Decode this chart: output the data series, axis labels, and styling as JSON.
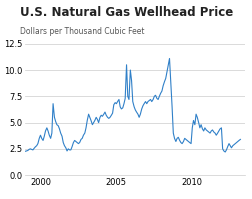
{
  "title": "U.S. Natural Gas Wellhead Price",
  "subtitle": "Dollars per Thousand Cubic Feet",
  "line_color": "#3080c8",
  "background_color": "#ffffff",
  "grid_color": "#cccccc",
  "xlim": [
    1999,
    2013.5
  ],
  "ylim": [
    0.0,
    12.5
  ],
  "yticks": [
    0.0,
    2.5,
    5.0,
    7.5,
    10.0,
    12.5
  ],
  "xticks": [
    2000,
    2005,
    2010
  ],
  "years": [
    1999.0,
    1999.08,
    1999.17,
    1999.25,
    1999.33,
    1999.42,
    1999.5,
    1999.58,
    1999.67,
    1999.75,
    1999.83,
    1999.92,
    2000.0,
    2000.08,
    2000.17,
    2000.25,
    2000.33,
    2000.42,
    2000.5,
    2000.58,
    2000.67,
    2000.75,
    2000.83,
    2000.92,
    2001.0,
    2001.08,
    2001.17,
    2001.25,
    2001.33,
    2001.42,
    2001.5,
    2001.58,
    2001.67,
    2001.75,
    2001.83,
    2001.92,
    2002.0,
    2002.08,
    2002.17,
    2002.25,
    2002.33,
    2002.42,
    2002.5,
    2002.58,
    2002.67,
    2002.75,
    2002.83,
    2002.92,
    2003.0,
    2003.08,
    2003.17,
    2003.25,
    2003.33,
    2003.42,
    2003.5,
    2003.58,
    2003.67,
    2003.75,
    2003.83,
    2003.92,
    2004.0,
    2004.08,
    2004.17,
    2004.25,
    2004.33,
    2004.42,
    2004.5,
    2004.58,
    2004.67,
    2004.75,
    2004.83,
    2004.92,
    2005.0,
    2005.08,
    2005.17,
    2005.25,
    2005.33,
    2005.42,
    2005.5,
    2005.58,
    2005.67,
    2005.75,
    2005.83,
    2005.92,
    2006.0,
    2006.08,
    2006.17,
    2006.25,
    2006.33,
    2006.42,
    2006.5,
    2006.58,
    2006.67,
    2006.75,
    2006.83,
    2006.92,
    2007.0,
    2007.08,
    2007.17,
    2007.25,
    2007.33,
    2007.42,
    2007.5,
    2007.58,
    2007.67,
    2007.75,
    2007.83,
    2007.92,
    2008.0,
    2008.08,
    2008.17,
    2008.25,
    2008.33,
    2008.42,
    2008.5,
    2008.67,
    2008.75,
    2008.83,
    2008.92,
    2009.0,
    2009.08,
    2009.17,
    2009.25,
    2009.33,
    2009.42,
    2009.5,
    2009.58,
    2009.67,
    2009.75,
    2009.83,
    2009.92,
    2010.0,
    2010.08,
    2010.17,
    2010.25,
    2010.33,
    2010.42,
    2010.5,
    2010.58,
    2010.67,
    2010.75,
    2010.83,
    2010.92,
    2011.0,
    2011.08,
    2011.17,
    2011.25,
    2011.33,
    2011.42,
    2011.5,
    2011.58,
    2011.67,
    2011.75,
    2011.83,
    2011.92,
    2012.0,
    2012.08,
    2012.17,
    2012.25,
    2012.33,
    2012.42,
    2012.5,
    2012.58,
    2012.67,
    2012.75,
    2012.83,
    2012.92,
    2013.0,
    2013.08,
    2013.17
  ],
  "prices": [
    2.27,
    2.3,
    2.35,
    2.45,
    2.5,
    2.45,
    2.4,
    2.55,
    2.7,
    2.8,
    3.0,
    3.5,
    3.8,
    3.5,
    3.3,
    3.7,
    4.2,
    4.5,
    4.2,
    3.8,
    3.5,
    4.0,
    6.8,
    5.5,
    5.1,
    4.8,
    4.7,
    4.4,
    4.0,
    3.7,
    3.1,
    2.8,
    2.6,
    2.3,
    2.5,
    2.4,
    2.4,
    2.7,
    3.1,
    3.3,
    3.2,
    3.1,
    3.0,
    3.1,
    3.4,
    3.5,
    3.8,
    4.0,
    4.5,
    5.2,
    5.8,
    5.5,
    5.2,
    4.8,
    5.0,
    5.2,
    5.5,
    5.3,
    5.0,
    5.5,
    5.7,
    5.6,
    5.8,
    6.0,
    5.7,
    5.5,
    5.4,
    5.5,
    5.7,
    5.9,
    6.7,
    6.9,
    6.8,
    7.0,
    7.2,
    6.5,
    6.3,
    6.4,
    6.8,
    7.3,
    10.5,
    7.5,
    7.2,
    10.0,
    9.0,
    7.0,
    6.5,
    6.2,
    6.0,
    5.8,
    5.5,
    5.8,
    6.3,
    6.6,
    6.8,
    7.0,
    6.8,
    7.0,
    7.1,
    7.2,
    7.0,
    7.2,
    7.5,
    7.6,
    7.3,
    7.2,
    7.5,
    7.8,
    8.0,
    8.5,
    8.9,
    9.2,
    9.8,
    10.5,
    11.1,
    6.5,
    4.0,
    3.5,
    3.2,
    3.5,
    3.6,
    3.3,
    3.1,
    3.0,
    3.2,
    3.5,
    3.4,
    3.3,
    3.2,
    3.1,
    3.0,
    4.5,
    5.2,
    4.8,
    5.8,
    5.5,
    5.0,
    4.5,
    4.8,
    4.4,
    4.2,
    4.5,
    4.3,
    4.2,
    4.1,
    4.0,
    4.2,
    4.3,
    4.1,
    4.0,
    3.8,
    4.0,
    4.2,
    4.4,
    4.5,
    2.5,
    2.3,
    2.2,
    2.4,
    2.7,
    3.0,
    2.8,
    2.6,
    2.8,
    2.9,
    3.0,
    3.1,
    3.2,
    3.3,
    3.4
  ]
}
